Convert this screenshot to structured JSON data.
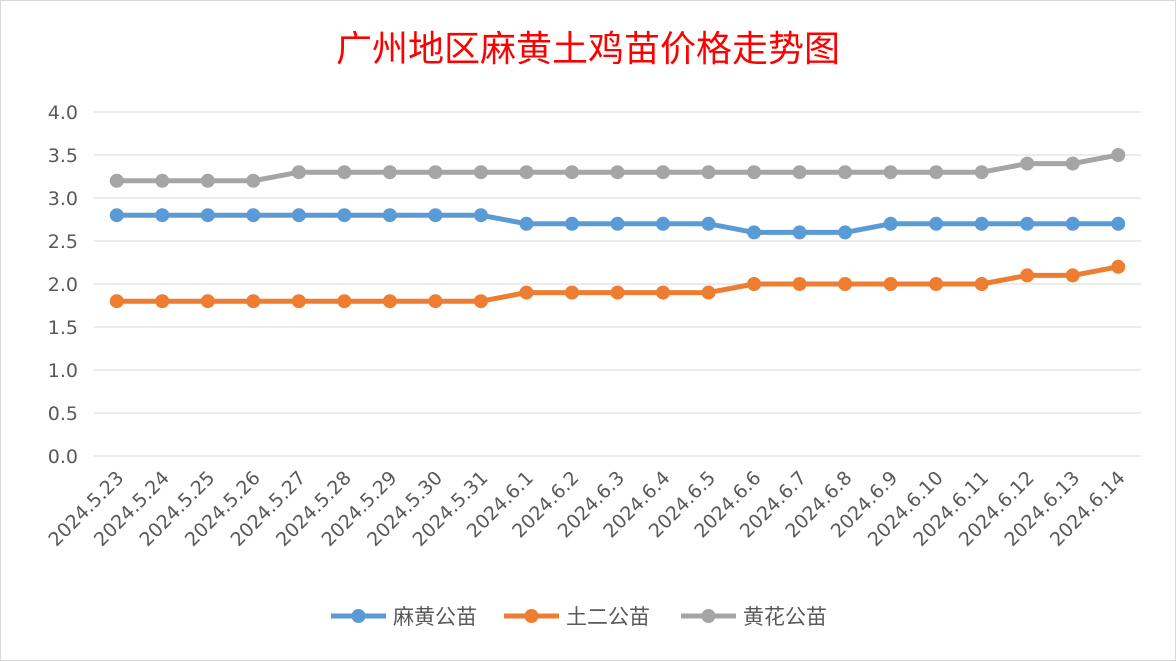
{
  "chart_data": {
    "type": "line",
    "title": "广州地区麻黄土鸡苗价格走势图",
    "xlabel": "",
    "ylabel": "",
    "ylim": [
      0,
      4.0
    ],
    "yticks": [
      "0.0",
      "0.5",
      "1.0",
      "1.5",
      "2.0",
      "2.5",
      "3.0",
      "3.5",
      "4.0"
    ],
    "grid": true,
    "legend": "bottom",
    "categories": [
      "2024.5.23",
      "2024.5.24",
      "2024.5.25",
      "2024.5.26",
      "2024.5.27",
      "2024.5.28",
      "2024.5.29",
      "2024.5.30",
      "2024.5.31",
      "2024.6.1",
      "2024.6.2",
      "2024.6.3",
      "2024.6.4",
      "2024.6.5",
      "2024.6.6",
      "2024.6.7",
      "2024.6.8",
      "2024.6.9",
      "2024.6.10",
      "2024.6.11",
      "2024.6.12",
      "2024.6.13",
      "2024.6.14"
    ],
    "series": [
      {
        "name": "麻黄公苗",
        "color": "#5b9bd5",
        "values": [
          2.8,
          2.8,
          2.8,
          2.8,
          2.8,
          2.8,
          2.8,
          2.8,
          2.8,
          2.7,
          2.7,
          2.7,
          2.7,
          2.7,
          2.6,
          2.6,
          2.6,
          2.7,
          2.7,
          2.7,
          2.7,
          2.7,
          2.7
        ]
      },
      {
        "name": "土二公苗",
        "color": "#ed7d31",
        "values": [
          1.8,
          1.8,
          1.8,
          1.8,
          1.8,
          1.8,
          1.8,
          1.8,
          1.8,
          1.9,
          1.9,
          1.9,
          1.9,
          1.9,
          2.0,
          2.0,
          2.0,
          2.0,
          2.0,
          2.0,
          2.1,
          2.1,
          2.2
        ]
      },
      {
        "name": "黄花公苗",
        "color": "#a5a5a5",
        "values": [
          3.2,
          3.2,
          3.2,
          3.2,
          3.3,
          3.3,
          3.3,
          3.3,
          3.3,
          3.3,
          3.3,
          3.3,
          3.3,
          3.3,
          3.3,
          3.3,
          3.3,
          3.3,
          3.3,
          3.3,
          3.4,
          3.4,
          3.5
        ]
      }
    ]
  }
}
